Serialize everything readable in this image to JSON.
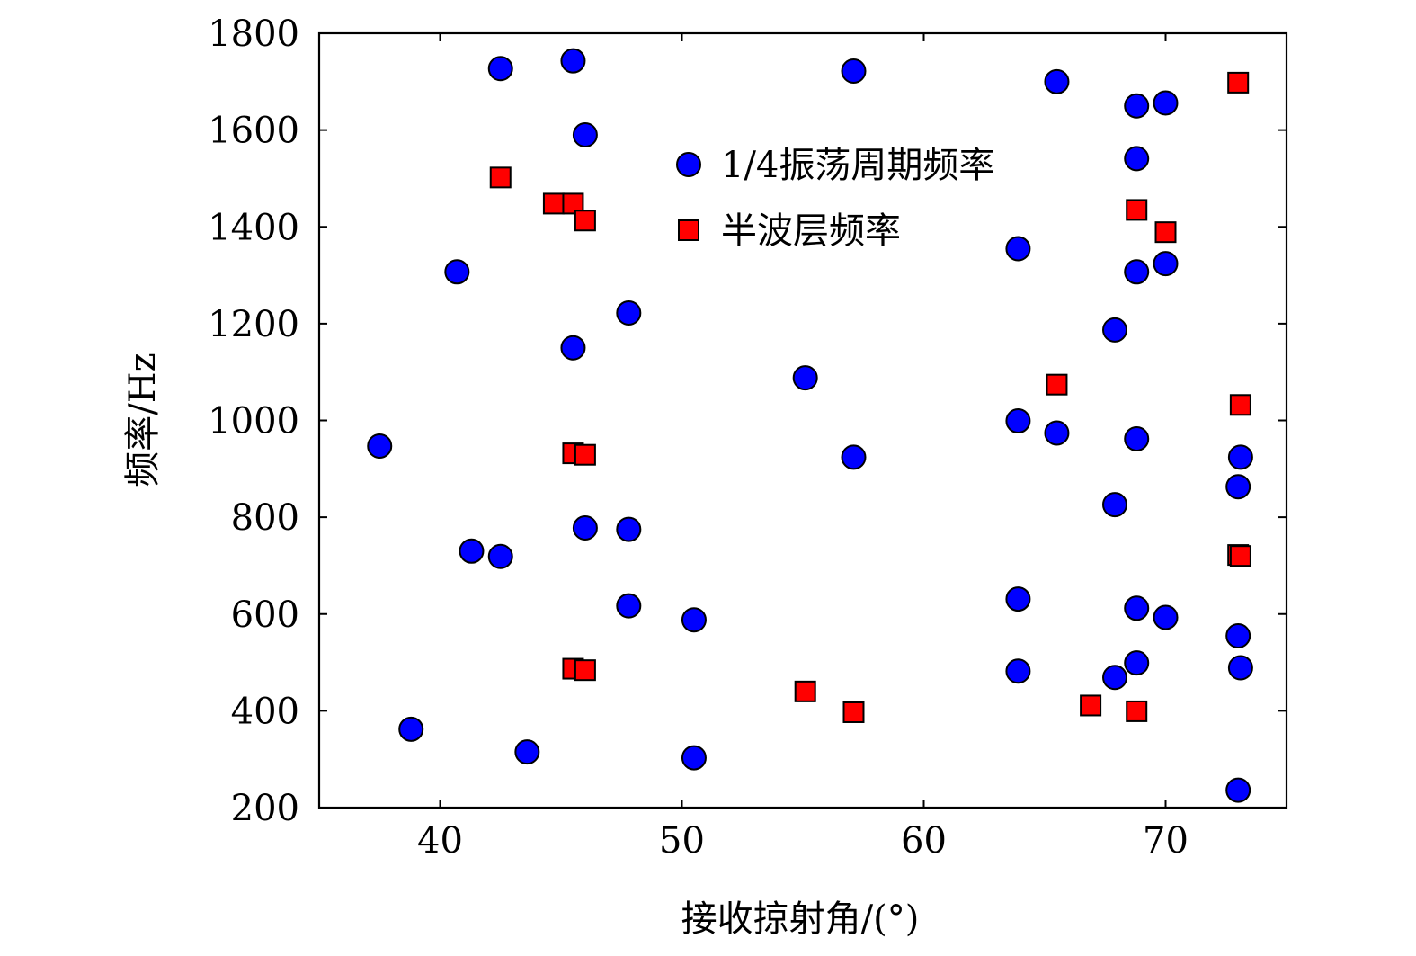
{
  "chart_data": {
    "type": "scatter",
    "xlabel": "接收掠射角/(°)",
    "ylabel": "频率/Hz",
    "xlim": [
      35,
      75
    ],
    "ylim": [
      200,
      1800
    ],
    "x_ticks": [
      40,
      50,
      60,
      70
    ],
    "y_ticks": [
      200,
      400,
      600,
      800,
      1000,
      1200,
      1400,
      1600,
      1800
    ],
    "grid": false,
    "legend_position": "top-right",
    "series": [
      {
        "name": "1/4振荡周期频率",
        "marker": "circle",
        "color": "#0000ff",
        "points": [
          [
            37.5,
            947
          ],
          [
            38.8,
            362
          ],
          [
            40.7,
            1307
          ],
          [
            41.3,
            730
          ],
          [
            42.5,
            1727
          ],
          [
            42.5,
            719
          ],
          [
            43.6,
            315
          ],
          [
            45.5,
            1743
          ],
          [
            45.5,
            1150
          ],
          [
            46.0,
            1590
          ],
          [
            46.0,
            778
          ],
          [
            47.8,
            1222
          ],
          [
            47.8,
            775
          ],
          [
            47.8,
            617
          ],
          [
            50.5,
            588
          ],
          [
            50.5,
            303
          ],
          [
            55.1,
            1088
          ],
          [
            57.1,
            1722
          ],
          [
            57.1,
            924
          ],
          [
            63.9,
            1355
          ],
          [
            63.9,
            999
          ],
          [
            63.9,
            631
          ],
          [
            63.9,
            482
          ],
          [
            65.5,
            1700
          ],
          [
            65.5,
            974
          ],
          [
            67.9,
            1187
          ],
          [
            67.9,
            826
          ],
          [
            67.9,
            469
          ],
          [
            68.8,
            1650
          ],
          [
            68.8,
            1541
          ],
          [
            68.8,
            1307
          ],
          [
            68.8,
            962
          ],
          [
            68.8,
            612
          ],
          [
            68.8,
            499
          ],
          [
            70.0,
            1656
          ],
          [
            70.0,
            1324
          ],
          [
            70.0,
            593
          ],
          [
            73.0,
            863
          ],
          [
            73.0,
            555
          ],
          [
            73.0,
            236
          ],
          [
            73.1,
            924
          ],
          [
            73.1,
            489
          ]
        ]
      },
      {
        "name": "半波层频率",
        "marker": "square",
        "color": "#ff0000",
        "points": [
          [
            42.5,
            1502
          ],
          [
            44.7,
            1448
          ],
          [
            45.5,
            1448
          ],
          [
            46.0,
            1413
          ],
          [
            45.5,
            932
          ],
          [
            46.0,
            929
          ],
          [
            45.5,
            487
          ],
          [
            46.0,
            484
          ],
          [
            55.1,
            440
          ],
          [
            57.1,
            397
          ],
          [
            65.5,
            1074
          ],
          [
            66.9,
            411
          ],
          [
            68.8,
            1435
          ],
          [
            68.8,
            399
          ],
          [
            70.0,
            1389
          ],
          [
            73.0,
            1698
          ],
          [
            73.1,
            1032
          ],
          [
            73.0,
            722
          ],
          [
            73.1,
            720
          ]
        ]
      }
    ]
  },
  "colors": {
    "axis": "#000000",
    "marker_stroke": "#000000",
    "circle_fill": "#0000ff",
    "square_fill": "#ff0000"
  }
}
